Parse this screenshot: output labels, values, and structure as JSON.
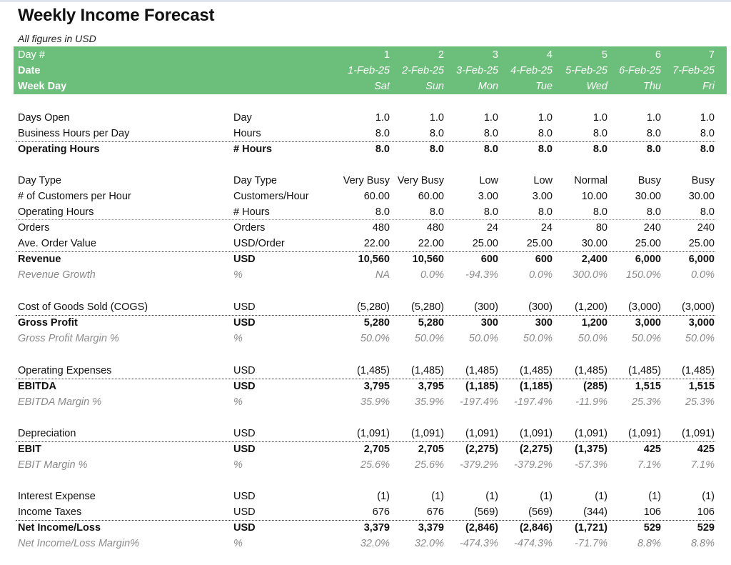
{
  "title": "Weekly Income Forecast",
  "subtitle": "All figures in USD",
  "header": [
    {
      "label": "Day #",
      "vals": [
        "1",
        "2",
        "3",
        "4",
        "5",
        "6",
        "7"
      ]
    },
    {
      "label": "Date",
      "vals": [
        "1-Feb-25",
        "2-Feb-25",
        "3-Feb-25",
        "4-Feb-25",
        "5-Feb-25",
        "6-Feb-25",
        "7-Feb-25"
      ]
    },
    {
      "label": "Week Day",
      "vals": [
        "Sat",
        "Sun",
        "Mon",
        "Tue",
        "Wed",
        "Thu",
        "Fri"
      ]
    }
  ],
  "rows": [
    {
      "label": "Days Open",
      "unit": "Day",
      "vals": [
        "1.0",
        "1.0",
        "1.0",
        "1.0",
        "1.0",
        "1.0",
        "1.0"
      ]
    },
    {
      "label": "Business Hours per Day",
      "unit": "Hours",
      "vals": [
        "8.0",
        "8.0",
        "8.0",
        "8.0",
        "8.0",
        "8.0",
        "8.0"
      ]
    },
    {
      "label": "Operating Hours",
      "unit": "# Hours",
      "vals": [
        "8.0",
        "8.0",
        "8.0",
        "8.0",
        "8.0",
        "8.0",
        "8.0"
      ]
    },
    {
      "label": "Day Type",
      "unit": "Day Type",
      "vals": [
        "Very Busy",
        "Very Busy",
        "Low",
        "Low",
        "Normal",
        "Busy",
        "Busy"
      ]
    },
    {
      "label": "# of Customers per Hour",
      "unit": "Customers/Hour",
      "vals": [
        "60.00",
        "60.00",
        "3.00",
        "3.00",
        "10.00",
        "30.00",
        "30.00"
      ]
    },
    {
      "label": "Operating Hours",
      "unit": "# Hours",
      "vals": [
        "8.0",
        "8.0",
        "8.0",
        "8.0",
        "8.0",
        "8.0",
        "8.0"
      ]
    },
    {
      "label": "Orders",
      "unit": "Orders",
      "vals": [
        "480",
        "480",
        "24",
        "24",
        "80",
        "240",
        "240"
      ]
    },
    {
      "label": "Ave. Order Value",
      "unit": "USD/Order",
      "vals": [
        "22.00",
        "22.00",
        "25.00",
        "25.00",
        "30.00",
        "25.00",
        "25.00"
      ]
    },
    {
      "label": "Revenue",
      "unit": "USD",
      "vals": [
        "10,560",
        "10,560",
        "600",
        "600",
        "2,400",
        "6,000",
        "6,000"
      ]
    },
    {
      "label": "Revenue Growth",
      "unit": "%",
      "vals": [
        "NA",
        "0.0%",
        "-94.3%",
        "0.0%",
        "300.0%",
        "150.0%",
        "0.0%"
      ]
    },
    {
      "label": "Cost of Goods Sold (COGS)",
      "unit": "USD",
      "vals": [
        "(5,280)",
        "(5,280)",
        "(300)",
        "(300)",
        "(1,200)",
        "(3,000)",
        "(3,000)"
      ]
    },
    {
      "label": "Gross Profit",
      "unit": "USD",
      "vals": [
        "5,280",
        "5,280",
        "300",
        "300",
        "1,200",
        "3,000",
        "3,000"
      ]
    },
    {
      "label": "Gross Profit Margin %",
      "unit": "%",
      "vals": [
        "50.0%",
        "50.0%",
        "50.0%",
        "50.0%",
        "50.0%",
        "50.0%",
        "50.0%"
      ]
    },
    {
      "label": "Operating Expenses",
      "unit": "USD",
      "vals": [
        "(1,485)",
        "(1,485)",
        "(1,485)",
        "(1,485)",
        "(1,485)",
        "(1,485)",
        "(1,485)"
      ]
    },
    {
      "label": "EBITDA",
      "unit": "USD",
      "vals": [
        "3,795",
        "3,795",
        "(1,185)",
        "(1,185)",
        "(285)",
        "1,515",
        "1,515"
      ]
    },
    {
      "label": "EBITDA Margin %",
      "unit": "%",
      "vals": [
        "35.9%",
        "35.9%",
        "-197.4%",
        "-197.4%",
        "-11.9%",
        "25.3%",
        "25.3%"
      ]
    },
    {
      "label": "Depreciation",
      "unit": "USD",
      "vals": [
        "(1,091)",
        "(1,091)",
        "(1,091)",
        "(1,091)",
        "(1,091)",
        "(1,091)",
        "(1,091)"
      ]
    },
    {
      "label": "EBIT",
      "unit": "USD",
      "vals": [
        "2,705",
        "2,705",
        "(2,275)",
        "(2,275)",
        "(1,375)",
        "425",
        "425"
      ]
    },
    {
      "label": "EBIT Margin %",
      "unit": "%",
      "vals": [
        "25.6%",
        "25.6%",
        "-379.2%",
        "-379.2%",
        "-57.3%",
        "7.1%",
        "7.1%"
      ]
    },
    {
      "label": "Interest Expense",
      "unit": "USD",
      "vals": [
        "(1)",
        "(1)",
        "(1)",
        "(1)",
        "(1)",
        "(1)",
        "(1)"
      ]
    },
    {
      "label": "Income Taxes",
      "unit": "USD",
      "vals": [
        "676",
        "676",
        "(569)",
        "(569)",
        "(344)",
        "106",
        "106"
      ]
    },
    {
      "label": "Net Income/Loss",
      "unit": "USD",
      "vals": [
        "3,379",
        "3,379",
        "(2,846)",
        "(2,846)",
        "(1,721)",
        "529",
        "529"
      ]
    },
    {
      "label": "Net Income/Loss Margin%",
      "unit": "%",
      "vals": [
        "32.0%",
        "32.0%",
        "-474.3%",
        "-474.3%",
        "-71.7%",
        "8.8%",
        "8.8%"
      ]
    }
  ]
}
